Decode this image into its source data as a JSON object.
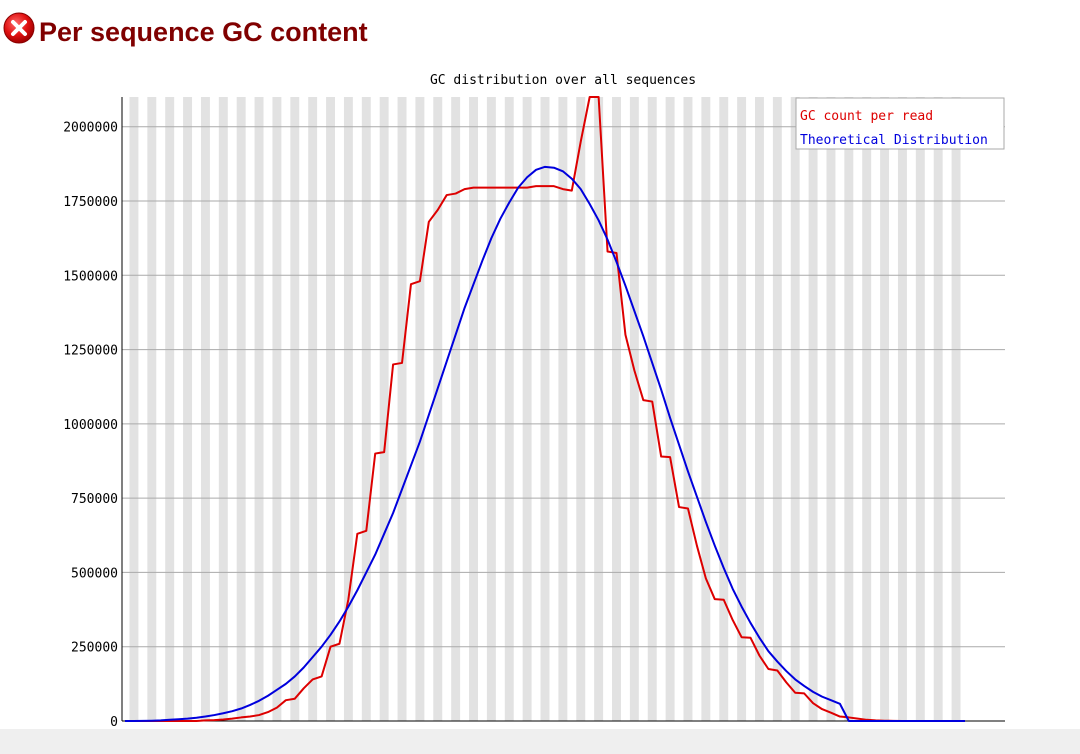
{
  "module": {
    "title": "Per sequence GC content",
    "status": "fail",
    "status_icon": "fail-icon",
    "title_color": "#800000"
  },
  "chart_data": {
    "type": "line",
    "title": "GC distribution over all sequences",
    "xlabel": "",
    "ylabel": "",
    "ylim": [
      0,
      2100000
    ],
    "yticks": [
      0,
      250000,
      500000,
      750000,
      1000000,
      1250000,
      1500000,
      1750000,
      2000000
    ],
    "ytick_labels": [
      "0",
      "250000",
      "500000",
      "750000",
      "1000000",
      "1250000",
      "1500000",
      "1750000",
      "2000000"
    ],
    "grid": "horizontal",
    "background": "alternating grey/white vertical bands",
    "legend_position": "top-right",
    "x": [
      0,
      1,
      2,
      3,
      4,
      5,
      6,
      7,
      8,
      9,
      10,
      11,
      12,
      13,
      14,
      15,
      16,
      17,
      18,
      19,
      20,
      21,
      22,
      23,
      24,
      25,
      26,
      27,
      28,
      29,
      30,
      31,
      32,
      33,
      34,
      35,
      36,
      37,
      38,
      39,
      40,
      41,
      42,
      43,
      44,
      45,
      46,
      47,
      48,
      49,
      50,
      51,
      52,
      53,
      54,
      55,
      56,
      57,
      58,
      59,
      60,
      61,
      62,
      63,
      64,
      65,
      66,
      67,
      68,
      69,
      70,
      71,
      72,
      73,
      74,
      75,
      76,
      77,
      78,
      79,
      80,
      81,
      82,
      83,
      84,
      85,
      86,
      87,
      88,
      89,
      90,
      91,
      92,
      93,
      94,
      95,
      96,
      97,
      98,
      99,
      100
    ],
    "series": [
      {
        "name": "GC count per read",
        "color": "#dd0000",
        "values": [
          0,
          0,
          0,
          0,
          0,
          0,
          0,
          0,
          0,
          2000,
          3000,
          5000,
          8000,
          12000,
          15000,
          20000,
          30000,
          45000,
          70000,
          75000,
          110000,
          140000,
          150000,
          250000,
          260000,
          410000,
          630000,
          640000,
          900000,
          905000,
          1200000,
          1205000,
          1470000,
          1480000,
          1680000,
          1720000,
          1770000,
          1775000,
          1790000,
          1795000,
          1795000,
          1795000,
          1795000,
          1795000,
          1795000,
          1795000,
          1800000,
          1800000,
          1800000,
          1790000,
          1785000,
          1950000,
          2110000,
          2110000,
          1580000,
          1575000,
          1300000,
          1180000,
          1080000,
          1075000,
          890000,
          888000,
          720000,
          715000,
          590000,
          480000,
          410000,
          408000,
          340000,
          282000,
          280000,
          220000,
          175000,
          170000,
          130000,
          95000,
          93000,
          60000,
          40000,
          28000,
          15000,
          12000,
          8000,
          4000,
          2000,
          1000,
          500,
          0,
          0,
          0,
          0,
          0,
          0,
          0,
          0,
          0,
          0,
          0,
          0,
          0,
          0
        ],
        "values_note": ""
      },
      {
        "name": "Theoretical Distribution",
        "color": "#0000dd",
        "values": [
          0,
          0,
          500,
          1000,
          2000,
          4000,
          6000,
          8000,
          11000,
          15000,
          20000,
          26000,
          33000,
          42000,
          54000,
          68000,
          85000,
          105000,
          125000,
          150000,
          180000,
          215000,
          250000,
          290000,
          335000,
          385000,
          440000,
          500000,
          560000,
          630000,
          700000,
          780000,
          860000,
          940000,
          1030000,
          1120000,
          1210000,
          1300000,
          1390000,
          1470000,
          1550000,
          1625000,
          1690000,
          1745000,
          1795000,
          1830000,
          1855000,
          1865000,
          1862000,
          1850000,
          1825000,
          1790000,
          1740000,
          1685000,
          1620000,
          1545000,
          1465000,
          1380000,
          1295000,
          1205000,
          1115000,
          1020000,
          930000,
          840000,
          755000,
          670000,
          590000,
          515000,
          445000,
          385000,
          330000,
          280000,
          235000,
          200000,
          168000,
          140000,
          118000,
          98000,
          82000,
          70000,
          58000,
          0,
          0,
          0,
          0,
          0,
          0,
          0,
          0,
          0,
          0,
          0,
          0,
          0,
          0,
          0,
          0,
          0,
          0,
          0,
          0
        ]
      }
    ]
  }
}
